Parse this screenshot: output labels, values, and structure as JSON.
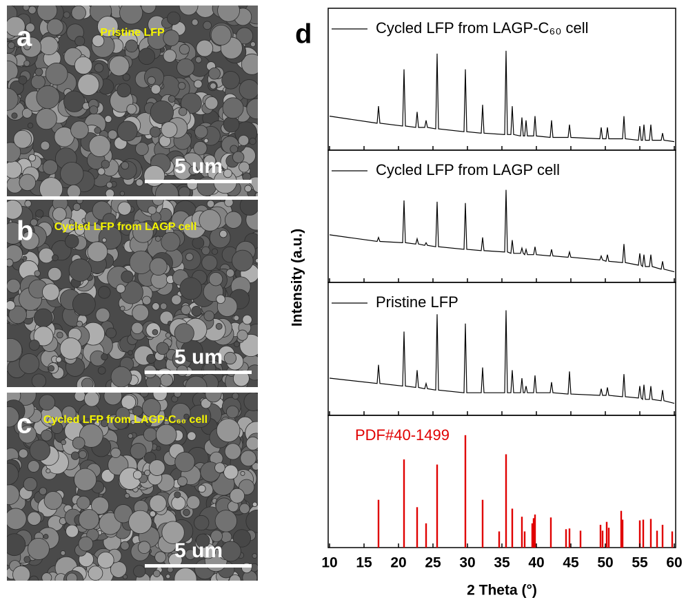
{
  "sem_images": [
    {
      "label": "a",
      "caption": "Pristine LFP",
      "scale_bar": "5 um"
    },
    {
      "label": "b",
      "caption": "Cycled  LFP from LAGP cell",
      "scale_bar": "5 um"
    },
    {
      "label": "c",
      "caption": "Cycled  LFP from LAGP-C₆₀ cell",
      "scale_bar": "5 um"
    }
  ],
  "panel_label": "d",
  "chart_data": [
    {
      "type": "line",
      "ylabel": "Intensity (a.u.)",
      "xlim": [
        10,
        60
      ],
      "ylim": [
        0,
        100
      ],
      "x": [
        10,
        16.9,
        17.1,
        17.3,
        20.6,
        20.8,
        21.0,
        22.5,
        22.7,
        22.9,
        23.8,
        24.0,
        24.2,
        25.4,
        25.6,
        25.8,
        29.5,
        29.7,
        29.9,
        32.0,
        32.2,
        32.4,
        35.4,
        35.6,
        35.8,
        36.3,
        36.5,
        36.7,
        37.7,
        37.9,
        38.1,
        38.3,
        38.5,
        38.7,
        39.6,
        39.8,
        40.0,
        42.0,
        42.2,
        42.4,
        44.6,
        44.8,
        45.0,
        49.2,
        49.4,
        49.6,
        50.1,
        50.3,
        50.5,
        52.5,
        52.7,
        52.9,
        54.8,
        55.0,
        55.2,
        55.4,
        55.6,
        55.8,
        56.4,
        56.6,
        56.8,
        58.1,
        58.3,
        58.5,
        60
      ],
      "series": [
        {
          "name": "Cycled LFP from LAGP-C₆₀ cell",
          "color": "#000000",
          "values": [
            24,
            19,
            31,
            19,
            17,
            57,
            17,
            16,
            27,
            16,
            16,
            21,
            16,
            15,
            68,
            15,
            13,
            57,
            13,
            12,
            32,
            12,
            11,
            70,
            11,
            11,
            31,
            11,
            10,
            23,
            10,
            10,
            21,
            10,
            10,
            24,
            10,
            9,
            21,
            9,
            9,
            18,
            9,
            8,
            16,
            8,
            8,
            16,
            8,
            8,
            24,
            8,
            7,
            17,
            7,
            7,
            18,
            7,
            7,
            18,
            7,
            7,
            12,
            7,
            6
          ]
        }
      ]
    },
    {
      "type": "line",
      "xlim": [
        10,
        60
      ],
      "ylim": [
        0,
        100
      ],
      "x": [
        10,
        16.9,
        17.1,
        17.3,
        20.6,
        20.8,
        21.0,
        22.5,
        22.7,
        22.9,
        23.8,
        24.0,
        24.2,
        25.4,
        25.6,
        25.8,
        29.5,
        29.7,
        29.9,
        32.0,
        32.2,
        32.4,
        35.4,
        35.6,
        35.8,
        36.3,
        36.5,
        36.7,
        37.7,
        37.9,
        38.1,
        38.3,
        38.5,
        38.7,
        39.6,
        39.8,
        40.0,
        42.0,
        42.2,
        42.4,
        44.6,
        44.8,
        45.0,
        49.2,
        49.4,
        49.6,
        50.1,
        50.3,
        50.5,
        52.5,
        52.7,
        52.9,
        54.8,
        55.0,
        55.2,
        55.4,
        55.6,
        55.8,
        56.4,
        56.6,
        56.8,
        58.1,
        58.3,
        58.5,
        60
      ],
      "series": [
        {
          "name": "Cycled LFP from LAGP cell",
          "color": "#000000",
          "values": [
            36,
            31,
            34,
            31,
            30,
            62,
            30,
            29,
            33,
            29,
            28,
            30,
            28,
            27,
            61,
            27,
            25,
            60,
            25,
            24,
            34,
            24,
            23,
            70,
            23,
            22,
            32,
            22,
            22,
            26,
            22,
            21,
            25,
            21,
            21,
            27,
            21,
            20,
            25,
            20,
            19,
            23,
            19,
            17,
            20,
            17,
            16,
            21,
            16,
            15,
            29,
            15,
            13,
            22,
            13,
            12,
            21,
            12,
            12,
            21,
            12,
            10,
            16,
            10,
            8
          ]
        }
      ]
    },
    {
      "type": "line",
      "xlim": [
        10,
        60
      ],
      "ylim": [
        0,
        100
      ],
      "x": [
        10,
        16.9,
        17.1,
        17.3,
        20.6,
        20.8,
        21.0,
        22.5,
        22.7,
        22.9,
        23.8,
        24.0,
        24.2,
        25.4,
        25.6,
        25.8,
        29.5,
        29.7,
        29.9,
        32.0,
        32.2,
        32.4,
        35.4,
        35.6,
        35.8,
        36.3,
        36.5,
        36.7,
        37.7,
        37.9,
        38.1,
        38.3,
        38.5,
        38.7,
        39.6,
        39.8,
        40.0,
        42.0,
        42.2,
        42.4,
        44.6,
        44.8,
        45.0,
        49.2,
        49.4,
        49.6,
        50.1,
        50.3,
        50.5,
        52.5,
        52.7,
        52.9,
        54.8,
        55.0,
        55.2,
        55.4,
        55.6,
        55.8,
        56.4,
        56.6,
        56.8,
        58.1,
        58.3,
        58.5,
        60
      ],
      "series": [
        {
          "name": "Pristine LFP",
          "color": "#000000",
          "values": [
            28,
            24,
            38,
            24,
            22,
            63,
            22,
            21,
            34,
            21,
            20,
            24,
            20,
            19,
            76,
            19,
            17,
            69,
            17,
            17,
            36,
            17,
            17,
            79,
            17,
            17,
            34,
            17,
            17,
            28,
            17,
            17,
            22,
            17,
            17,
            30,
            17,
            17,
            25,
            17,
            16,
            33,
            16,
            15,
            20,
            15,
            15,
            21,
            15,
            14,
            31,
            14,
            13,
            22,
            13,
            12,
            23,
            12,
            12,
            22,
            12,
            11,
            19,
            11,
            9
          ]
        }
      ]
    },
    {
      "type": "bar",
      "annotation": "PDF#40-1499",
      "color": "#e00000",
      "xlim": [
        10,
        60
      ],
      "ylim": [
        0,
        180
      ],
      "x": [
        17.1,
        20.8,
        22.7,
        24.0,
        25.6,
        29.7,
        32.2,
        34.6,
        35.6,
        36.5,
        37.9,
        38.3,
        39.4,
        39.6,
        39.8,
        42.1,
        44.3,
        44.8,
        46.4,
        49.3,
        49.6,
        50.2,
        50.5,
        52.3,
        52.5,
        55.0,
        55.5,
        56.6,
        57.5,
        58.3,
        59.7
      ],
      "values": [
        65,
        120,
        55,
        33,
        113,
        153,
        65,
        22,
        127,
        53,
        42,
        22,
        33,
        40,
        45,
        41,
        25,
        26,
        23,
        31,
        23,
        35,
        27,
        50,
        38,
        37,
        38,
        39,
        23,
        31,
        22
      ],
      "xticks": [
        10,
        15,
        20,
        25,
        30,
        35,
        40,
        45,
        50,
        55,
        60
      ],
      "xlabel": "2 Theta (°)"
    }
  ]
}
